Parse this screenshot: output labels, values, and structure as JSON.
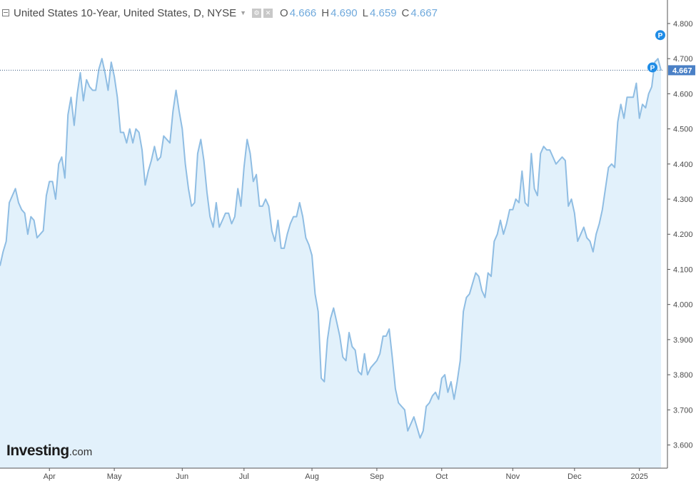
{
  "legend": {
    "symbol": "United States 10-Year, United States, D, NYSE",
    "open_label": "O",
    "open": "4.666",
    "high_label": "H",
    "high": "4.690",
    "low_label": "L",
    "low": "4.659",
    "close_label": "C",
    "close": "4.667"
  },
  "logo": {
    "name": "Investing",
    "suffix": ".com"
  },
  "markers": [
    {
      "label": "P",
      "value": 4.767
    },
    {
      "label": "P",
      "value": 4.675
    }
  ],
  "colors": {
    "line": "#8fbde3",
    "area": "#e2f1fb",
    "price_tag": "#4a80c6",
    "marker": "#1f8ce6",
    "grid_text": "#4a4a4a"
  },
  "chart_data": {
    "type": "area",
    "title": "",
    "xlabel": "",
    "ylabel": "",
    "ylim": [
      3.534,
      4.867
    ],
    "yticks": [
      3.6,
      3.7,
      3.8,
      3.9,
      4.0,
      4.1,
      4.2,
      4.3,
      4.4,
      4.5,
      4.6,
      4.7,
      4.8
    ],
    "ytick_labels": [
      "3.600",
      "3.700",
      "3.800",
      "3.900",
      "4.000",
      "4.100",
      "4.200",
      "4.300",
      "4.400",
      "4.500",
      "4.600",
      "4.700",
      "4.800"
    ],
    "xticks": [
      {
        "label": "Apr",
        "index": 16
      },
      {
        "label": "May",
        "index": 37
      },
      {
        "label": "Jun",
        "index": 59
      },
      {
        "label": "Jul",
        "index": 79
      },
      {
        "label": "Aug",
        "index": 101
      },
      {
        "label": "Sep",
        "index": 122
      },
      {
        "label": "Oct",
        "index": 143
      },
      {
        "label": "Nov",
        "index": 166
      },
      {
        "label": "Dec",
        "index": 186
      },
      {
        "label": "2025",
        "index": 207
      }
    ],
    "last_value": 4.667,
    "last_value_label": "4.667",
    "grid": false,
    "series": [
      {
        "values": [
          4.11,
          4.15,
          4.18,
          4.29,
          4.31,
          4.33,
          4.29,
          4.27,
          4.26,
          4.2,
          4.25,
          4.24,
          4.19,
          4.2,
          4.21,
          4.31,
          4.35,
          4.35,
          4.3,
          4.4,
          4.42,
          4.36,
          4.54,
          4.59,
          4.51,
          4.6,
          4.66,
          4.58,
          4.64,
          4.62,
          4.61,
          4.61,
          4.67,
          4.7,
          4.66,
          4.61,
          4.69,
          4.65,
          4.59,
          4.49,
          4.49,
          4.46,
          4.5,
          4.46,
          4.5,
          4.49,
          4.44,
          4.34,
          4.38,
          4.41,
          4.45,
          4.41,
          4.42,
          4.48,
          4.47,
          4.46,
          4.55,
          4.61,
          4.55,
          4.5,
          4.4,
          4.33,
          4.28,
          4.29,
          4.43,
          4.47,
          4.41,
          4.32,
          4.25,
          4.22,
          4.29,
          4.22,
          4.24,
          4.26,
          4.26,
          4.23,
          4.25,
          4.33,
          4.28,
          4.39,
          4.47,
          4.43,
          4.35,
          4.37,
          4.28,
          4.28,
          4.3,
          4.28,
          4.21,
          4.18,
          4.24,
          4.16,
          4.16,
          4.2,
          4.23,
          4.25,
          4.25,
          4.29,
          4.25,
          4.19,
          4.17,
          4.14,
          4.03,
          3.98,
          3.79,
          3.78,
          3.9,
          3.96,
          3.99,
          3.95,
          3.91,
          3.85,
          3.84,
          3.92,
          3.88,
          3.87,
          3.81,
          3.8,
          3.86,
          3.8,
          3.82,
          3.83,
          3.84,
          3.86,
          3.91,
          3.91,
          3.93,
          3.85,
          3.76,
          3.72,
          3.71,
          3.7,
          3.64,
          3.66,
          3.68,
          3.65,
          3.62,
          3.64,
          3.71,
          3.72,
          3.74,
          3.75,
          3.73,
          3.79,
          3.8,
          3.75,
          3.78,
          3.73,
          3.78,
          3.84,
          3.98,
          4.02,
          4.03,
          4.06,
          4.09,
          4.08,
          4.04,
          4.02,
          4.09,
          4.08,
          4.18,
          4.2,
          4.24,
          4.2,
          4.23,
          4.27,
          4.27,
          4.3,
          4.29,
          4.38,
          4.29,
          4.28,
          4.43,
          4.33,
          4.31,
          4.43,
          4.45,
          4.44,
          4.44,
          4.42,
          4.4,
          4.41,
          4.42,
          4.41,
          4.28,
          4.3,
          4.26,
          4.18,
          4.2,
          4.22,
          4.19,
          4.18,
          4.15,
          4.2,
          4.23,
          4.27,
          4.33,
          4.39,
          4.4,
          4.39,
          4.52,
          4.57,
          4.53,
          4.59,
          4.59,
          4.59,
          4.63,
          4.53,
          4.57,
          4.56,
          4.6,
          4.62,
          4.69,
          4.7,
          4.667
        ]
      }
    ]
  }
}
